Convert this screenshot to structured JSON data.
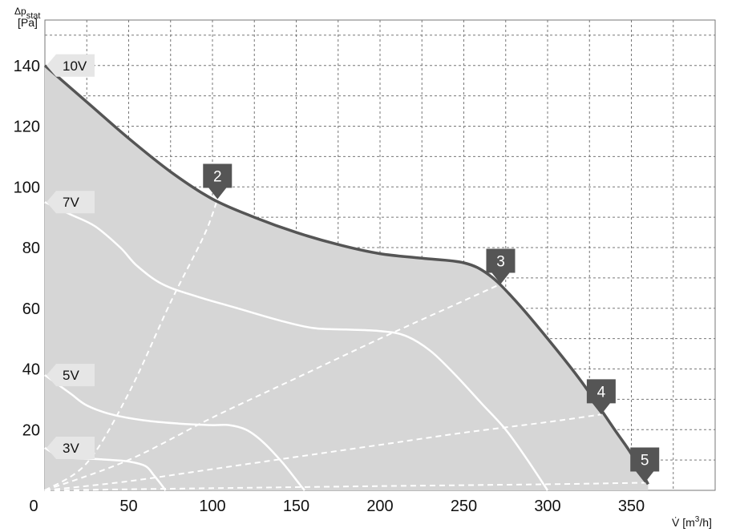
{
  "chart_data": {
    "type": "line",
    "ylabel": "Δp",
    "ylabel_sub": "stat",
    "ylabel_unit": "[Pa]",
    "xlabel": "V̇ [m",
    "xlabel_sup": "3",
    "xlabel_end": "/h]",
    "xlim": [
      0,
      400
    ],
    "ylim": [
      0,
      155
    ],
    "x_ticks": [
      0,
      50,
      100,
      150,
      200,
      250,
      300,
      350
    ],
    "y_ticks": [
      20,
      40,
      60,
      80,
      100,
      120,
      140
    ],
    "grid": true,
    "colors": {
      "area": "#d6d6d6",
      "max_curve": "#555555",
      "voltage_curves": "#ffffff",
      "system_curves": "#ffffff",
      "marker": "#555555",
      "flag": "#e6e6e6"
    },
    "series": [
      {
        "name": "10V",
        "values": [
          [
            0,
            140
          ],
          [
            25,
            128
          ],
          [
            50,
            116
          ],
          [
            75,
            105
          ],
          [
            100,
            96
          ],
          [
            125,
            90
          ],
          [
            150,
            85
          ],
          [
            175,
            81
          ],
          [
            200,
            78
          ],
          [
            225,
            76.5
          ],
          [
            250,
            75
          ],
          [
            265,
            71
          ],
          [
            280,
            63
          ],
          [
            300,
            50
          ],
          [
            320,
            36
          ],
          [
            340,
            20
          ],
          [
            350,
            12
          ],
          [
            360,
            2
          ]
        ]
      },
      {
        "name": "7V",
        "values": [
          [
            0,
            95
          ],
          [
            15,
            91
          ],
          [
            30,
            87
          ],
          [
            45,
            80
          ],
          [
            55,
            74
          ],
          [
            70,
            68
          ],
          [
            90,
            64
          ],
          [
            115,
            60
          ],
          [
            140,
            56
          ],
          [
            160,
            53.5
          ],
          [
            180,
            53
          ],
          [
            200,
            52.5
          ],
          [
            215,
            51
          ],
          [
            230,
            46
          ],
          [
            245,
            38
          ],
          [
            260,
            29
          ],
          [
            275,
            20
          ],
          [
            288,
            10
          ],
          [
            300,
            0
          ]
        ]
      },
      {
        "name": "5V",
        "values": [
          [
            0,
            38
          ],
          [
            15,
            32
          ],
          [
            25,
            28
          ],
          [
            40,
            25
          ],
          [
            60,
            23
          ],
          [
            80,
            22
          ],
          [
            100,
            21.5
          ],
          [
            110,
            21.5
          ],
          [
            120,
            20
          ],
          [
            130,
            16
          ],
          [
            142,
            9
          ],
          [
            152,
            2
          ],
          [
            155,
            0
          ]
        ]
      },
      {
        "name": "3V",
        "values": [
          [
            0,
            14
          ],
          [
            10,
            11
          ],
          [
            25,
            10.5
          ],
          [
            40,
            10
          ],
          [
            50,
            9.5
          ],
          [
            60,
            8
          ],
          [
            65,
            5
          ],
          [
            70,
            1.5
          ],
          [
            72,
            0
          ]
        ]
      }
    ],
    "system_curves": [
      {
        "label": "2",
        "values": [
          [
            0,
            0
          ],
          [
            25,
            9
          ],
          [
            50,
            32
          ],
          [
            75,
            62
          ],
          [
            95,
            84
          ],
          [
            103,
            96
          ]
        ]
      },
      {
        "label": "3",
        "values": [
          [
            0,
            0
          ],
          [
            50,
            10
          ],
          [
            100,
            24
          ],
          [
            150,
            37
          ],
          [
            200,
            50
          ],
          [
            240,
            60
          ],
          [
            272,
            68
          ]
        ]
      },
      {
        "label": "4",
        "values": [
          [
            0,
            0
          ],
          [
            50,
            3
          ],
          [
            100,
            7
          ],
          [
            150,
            11
          ],
          [
            200,
            15
          ],
          [
            250,
            19
          ],
          [
            300,
            22.5
          ],
          [
            332,
            25
          ]
        ]
      },
      {
        "label": "5",
        "values": [
          [
            0,
            0
          ],
          [
            100,
            0.7
          ],
          [
            200,
            1.4
          ],
          [
            300,
            2
          ],
          [
            358,
            2.5
          ]
        ]
      }
    ],
    "markers": [
      {
        "label": "2",
        "x": 103,
        "y": 96
      },
      {
        "label": "3",
        "x": 272,
        "y": 68
      },
      {
        "label": "4",
        "x": 332,
        "y": 25
      },
      {
        "label": "5",
        "x": 358,
        "y": 2.5
      }
    ]
  }
}
